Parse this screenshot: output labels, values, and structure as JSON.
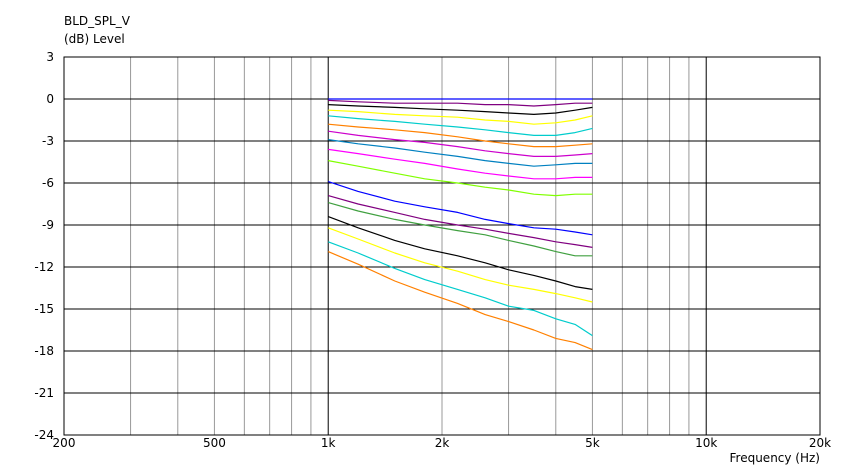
{
  "chart_data": {
    "type": "line",
    "title": "BLD_SPL_V",
    "ylabel": "(dB)  Level",
    "xlabel": "Frequency  (Hz)",
    "x_scale": "log",
    "xlim": [
      200,
      20000
    ],
    "ylim": [
      -24,
      3
    ],
    "grid": true,
    "legend": "none",
    "x_ticks": [
      {
        "value": 200,
        "label": "200"
      },
      {
        "value": 500,
        "label": "500"
      },
      {
        "value": 1000,
        "label": "1k"
      },
      {
        "value": 2000,
        "label": "2k"
      },
      {
        "value": 5000,
        "label": "5k"
      },
      {
        "value": 10000,
        "label": "10k"
      },
      {
        "value": 20000,
        "label": "20k"
      }
    ],
    "y_ticks": [
      {
        "value": 3,
        "label": "3"
      },
      {
        "value": 0,
        "label": "0"
      },
      {
        "value": -3,
        "label": "-3"
      },
      {
        "value": -6,
        "label": "-6"
      },
      {
        "value": -9,
        "label": "-9"
      },
      {
        "value": -12,
        "label": "-12"
      },
      {
        "value": -15,
        "label": "-15"
      },
      {
        "value": -18,
        "label": "-18"
      },
      {
        "value": -21,
        "label": "-21"
      },
      {
        "value": -24,
        "label": "-24"
      }
    ],
    "x": [
      1000,
      1200,
      1500,
      1800,
      2200,
      2600,
      3000,
      3500,
      4000,
      4500,
      5000
    ],
    "series": [
      {
        "color": "#0000ff",
        "values": [
          0.0,
          0.0,
          0.0,
          0.0,
          0.0,
          0.0,
          0.0,
          0.0,
          0.0,
          0.0,
          0.0
        ]
      },
      {
        "color": "#800080",
        "values": [
          -0.1,
          -0.2,
          -0.3,
          -0.3,
          -0.3,
          -0.4,
          -0.4,
          -0.5,
          -0.4,
          -0.3,
          -0.3
        ]
      },
      {
        "color": "#000000",
        "values": [
          -0.4,
          -0.5,
          -0.6,
          -0.7,
          -0.8,
          -0.9,
          -1.0,
          -1.1,
          -1.0,
          -0.8,
          -0.6
        ]
      },
      {
        "color": "#ffff00",
        "values": [
          -0.8,
          -0.9,
          -1.1,
          -1.2,
          -1.3,
          -1.5,
          -1.6,
          -1.8,
          -1.7,
          -1.5,
          -1.2
        ]
      },
      {
        "color": "#00cccc",
        "values": [
          -1.2,
          -1.4,
          -1.6,
          -1.8,
          -2.0,
          -2.2,
          -2.4,
          -2.6,
          -2.6,
          -2.4,
          -2.1
        ]
      },
      {
        "color": "#ff8000",
        "values": [
          -1.8,
          -2.0,
          -2.2,
          -2.4,
          -2.7,
          -3.0,
          -3.2,
          -3.4,
          -3.4,
          -3.3,
          -3.2
        ]
      },
      {
        "color": "#cc00cc",
        "values": [
          -2.3,
          -2.6,
          -2.9,
          -3.1,
          -3.4,
          -3.7,
          -3.9,
          -4.1,
          -4.1,
          -4.0,
          -3.9
        ]
      },
      {
        "color": "#0080c0",
        "values": [
          -2.9,
          -3.2,
          -3.5,
          -3.8,
          -4.1,
          -4.4,
          -4.6,
          -4.8,
          -4.7,
          -4.6,
          -4.6
        ]
      },
      {
        "color": "#ff00ff",
        "values": [
          -3.6,
          -3.9,
          -4.3,
          -4.6,
          -5.0,
          -5.3,
          -5.5,
          -5.7,
          -5.7,
          -5.6,
          -5.6
        ]
      },
      {
        "color": "#80ff00",
        "values": [
          -4.4,
          -4.8,
          -5.3,
          -5.7,
          -6.0,
          -6.3,
          -6.5,
          -6.8,
          -6.9,
          -6.8,
          -6.8
        ]
      },
      {
        "color": "#0000ff",
        "values": [
          -5.9,
          -6.6,
          -7.3,
          -7.7,
          -8.1,
          -8.6,
          -8.9,
          -9.2,
          -9.3,
          -9.5,
          -9.7
        ]
      },
      {
        "color": "#800080",
        "values": [
          -6.9,
          -7.5,
          -8.1,
          -8.6,
          -9.0,
          -9.3,
          -9.6,
          -9.9,
          -10.2,
          -10.4,
          -10.6
        ]
      },
      {
        "color": "#40a040",
        "values": [
          -7.4,
          -8.0,
          -8.6,
          -9.0,
          -9.4,
          -9.7,
          -10.1,
          -10.5,
          -10.9,
          -11.2,
          -11.2
        ]
      },
      {
        "color": "#000000",
        "values": [
          -8.4,
          -9.2,
          -10.1,
          -10.7,
          -11.2,
          -11.7,
          -12.2,
          -12.6,
          -13.0,
          -13.4,
          -13.6
        ]
      },
      {
        "color": "#ffff00",
        "values": [
          -9.2,
          -10.0,
          -11.0,
          -11.7,
          -12.3,
          -12.9,
          -13.3,
          -13.6,
          -13.9,
          -14.2,
          -14.5
        ]
      },
      {
        "color": "#00cccc",
        "values": [
          -10.2,
          -11.0,
          -12.1,
          -12.9,
          -13.6,
          -14.2,
          -14.8,
          -15.1,
          -15.7,
          -16.1,
          -16.9
        ]
      },
      {
        "color": "#ff8000",
        "values": [
          -10.9,
          -11.8,
          -13.0,
          -13.8,
          -14.6,
          -15.4,
          -15.9,
          -16.5,
          -17.1,
          -17.4,
          -17.9
        ]
      }
    ]
  }
}
